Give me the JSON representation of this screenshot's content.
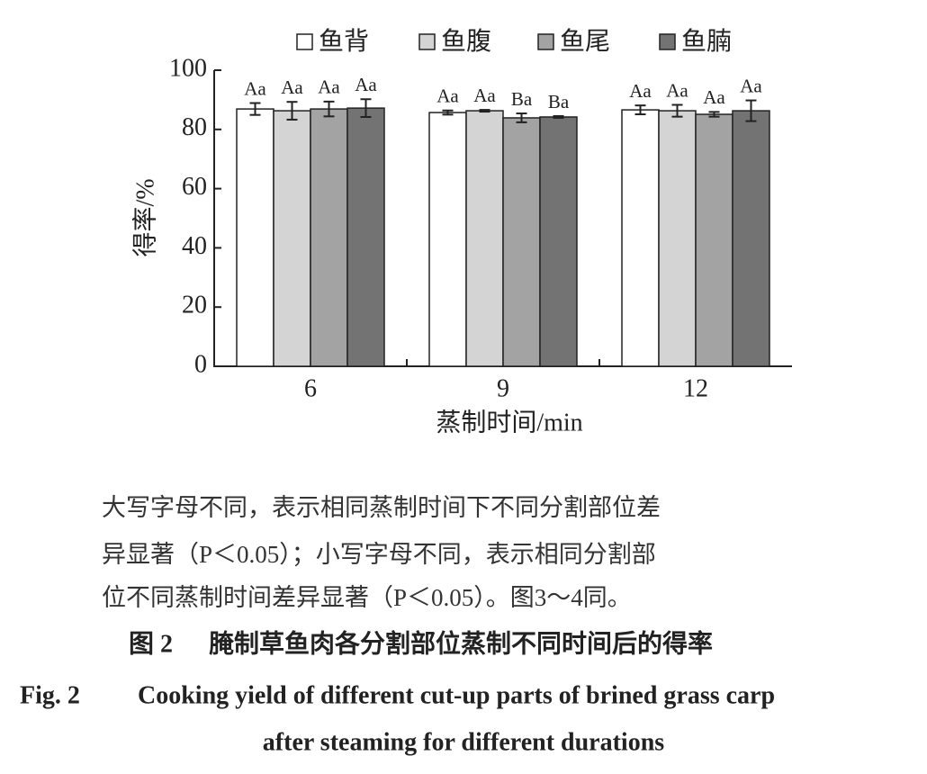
{
  "chart_data": {
    "type": "bar",
    "categories": [
      "6",
      "9",
      "12"
    ],
    "series": [
      {
        "name": "鱼背",
        "color": "#ffffff",
        "values": [
          86.9,
          85.7,
          86.6
        ],
        "errors": [
          2.0,
          0.7,
          1.5
        ],
        "significance": [
          "Aa",
          "Aa",
          "Aa"
        ]
      },
      {
        "name": "鱼腹",
        "color": "#d4d4d4",
        "values": [
          86.3,
          86.3,
          86.3
        ],
        "errors": [
          3.0,
          0.3,
          2.0
        ],
        "significance": [
          "Aa",
          "Aa",
          "Aa"
        ]
      },
      {
        "name": "鱼尾",
        "color": "#a3a3a3",
        "values": [
          86.9,
          83.9,
          85.1
        ],
        "errors": [
          2.5,
          1.5,
          0.8
        ],
        "significance": [
          "Aa",
          "Ba",
          "Aa"
        ]
      },
      {
        "name": "鱼腩",
        "color": "#737373",
        "values": [
          87.2,
          84.2,
          86.3
        ],
        "errors": [
          3.0,
          0.3,
          3.5
        ],
        "significance": [
          "Aa",
          "Ba",
          "Aa"
        ]
      }
    ],
    "ylim": [
      0,
      100
    ],
    "yticks": [
      0,
      20,
      40,
      60,
      80,
      100
    ],
    "y_label": "得率/%",
    "x_label": "蒸制时间/min",
    "note": [
      "大写字母不同，表示相同蒸制时间下不同分割部位差",
      "异显著（P＜0.05）；小写字母不同，表示相同分割部",
      "位不同蒸制时间差异显著（P＜0.05）。图3～4同。"
    ],
    "caption_cn": {
      "number": "图 2",
      "title": "腌制草鱼肉各分割部位蒸制不同时间后的得率"
    },
    "caption_en": {
      "number": "Fig. 2",
      "title": [
        "Cooking yield of different cut-up parts of brined grass carp",
        "after steaming for different durations"
      ]
    }
  }
}
